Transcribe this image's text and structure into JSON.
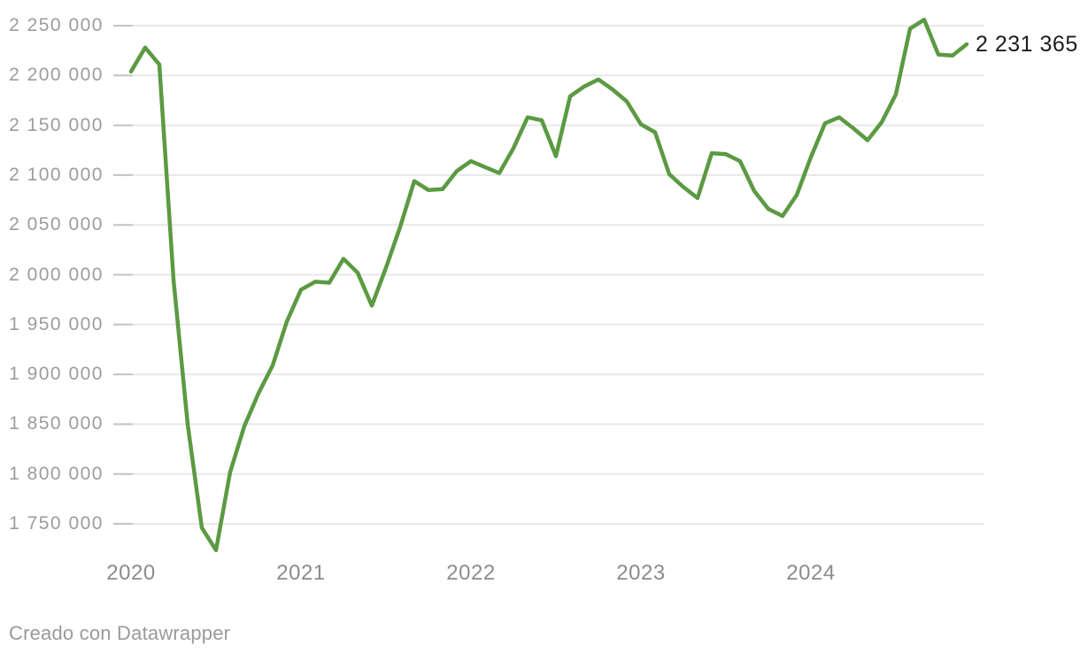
{
  "chart_data": {
    "type": "line",
    "title": "",
    "xlabel": "",
    "ylabel": "",
    "grid": "horizontal",
    "legend": "none",
    "line_color": "#5b9a42",
    "periodicity": "monthly",
    "months": [
      "2020-01",
      "2020-02",
      "2020-03",
      "2020-04",
      "2020-05",
      "2020-06",
      "2020-07",
      "2020-08",
      "2020-09",
      "2020-10",
      "2020-11",
      "2020-12",
      "2021-01",
      "2021-02",
      "2021-03",
      "2021-04",
      "2021-05",
      "2021-06",
      "2021-07",
      "2021-08",
      "2021-09",
      "2021-10",
      "2021-11",
      "2021-12",
      "2022-01",
      "2022-02",
      "2022-03",
      "2022-04",
      "2022-05",
      "2022-06",
      "2022-07",
      "2022-08",
      "2022-09",
      "2022-10",
      "2022-11",
      "2022-12",
      "2023-01",
      "2023-02",
      "2023-03",
      "2023-04",
      "2023-05",
      "2023-06",
      "2023-07",
      "2023-08",
      "2023-09",
      "2023-10",
      "2023-11",
      "2023-12",
      "2024-01",
      "2024-02",
      "2024-03",
      "2024-04",
      "2024-05",
      "2024-06",
      "2024-07",
      "2024-08",
      "2024-09",
      "2024-10",
      "2024-11",
      "2024-12"
    ],
    "series": [
      {
        "name": "",
        "values": [
          2204000,
          2228000,
          2211000,
          1995000,
          1850000,
          1746000,
          1723500,
          1802000,
          1848000,
          1881000,
          1909000,
          1953000,
          1985000,
          1993000,
          1992000,
          2016000,
          2002000,
          1969000,
          2007000,
          2048000,
          2094000,
          2085000,
          2086000,
          2104000,
          2114000,
          2108000,
          2102000,
          2127000,
          2158000,
          2155000,
          2119000,
          2179000,
          2189000,
          2196000,
          2186000,
          2174000,
          2151000,
          2143000,
          2101000,
          2088000,
          2077000,
          2122000,
          2121000,
          2114000,
          2084000,
          2066000,
          2059000,
          2080000,
          2118000,
          2152000,
          2158000,
          2147000,
          2135000,
          2153000,
          2181000,
          2247000,
          2256000,
          2221000,
          2220000,
          2231365
        ]
      }
    ],
    "y_ticks": [
      {
        "label": "2 250 000",
        "value": 2250000
      },
      {
        "label": "2 200 000",
        "value": 2200000
      },
      {
        "label": "2 150 000",
        "value": 2150000
      },
      {
        "label": "2 100 000",
        "value": 2100000
      },
      {
        "label": "2 050 000",
        "value": 2050000
      },
      {
        "label": "2 000 000",
        "value": 2000000
      },
      {
        "label": "1 950 000",
        "value": 1950000
      },
      {
        "label": "1 900 000",
        "value": 1900000
      },
      {
        "label": "1 850 000",
        "value": 1850000
      },
      {
        "label": "1 800 000",
        "value": 1800000
      },
      {
        "label": "1 750 000",
        "value": 1750000
      }
    ],
    "x_ticks": [
      "2020",
      "2021",
      "2022",
      "2023",
      "2024"
    ],
    "ylim": [
      1750000,
      2250000
    ],
    "end_label": "2 231 365"
  },
  "footer": {
    "attribution": "Creado con Datawrapper"
  }
}
